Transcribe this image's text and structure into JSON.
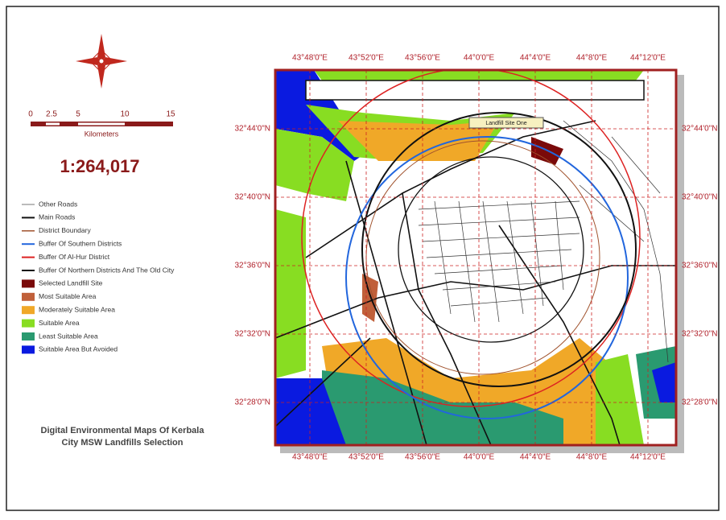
{
  "scale_bar": {
    "ticks": [
      "0",
      "2.5",
      "5",
      "10",
      "15"
    ],
    "unit": "Kilometers"
  },
  "scale_ratio": "1:264,017",
  "legend": [
    {
      "label": "Other Roads",
      "kind": "line",
      "color": "#777777",
      "width": 1
    },
    {
      "label": "Main Roads",
      "kind": "line",
      "color": "#111111",
      "width": 2
    },
    {
      "label": "District Boundary",
      "kind": "line",
      "color": "#a0522d",
      "width": 1.5
    },
    {
      "label": "Buffer Of Southern  Districts",
      "kind": "line",
      "color": "#2266dd",
      "width": 2
    },
    {
      "label": "Buffer Of Al-Hur District",
      "kind": "line",
      "color": "#dd2222",
      "width": 2
    },
    {
      "label": "Buffer Of Northern Districts And The Old City",
      "kind": "line",
      "color": "#111111",
      "width": 2
    },
    {
      "label": "Selected Landfill Site",
      "kind": "box",
      "color": "#7a0a0a"
    },
    {
      "label": "Most Suitable Area",
      "kind": "box",
      "color": "#c0603a"
    },
    {
      "label": "Moderately Suitable Area",
      "kind": "box",
      "color": "#f0a828"
    },
    {
      "label": "Suitable Area",
      "kind": "box",
      "color": "#88dd22"
    },
    {
      "label": "Least Suitable Area",
      "kind": "box",
      "color": "#2a9a70"
    },
    {
      "label": "Suitable Area But Avoided",
      "kind": "box",
      "color": "#0a1ae0"
    }
  ],
  "title": [
    "Digital Environmental Maps Of Kerbala",
    "City MSW  Landfills Selection"
  ],
  "map": {
    "longitudes": [
      "43°48'0\"E",
      "43°52'0\"E",
      "43°56'0\"E",
      "44°0'0\"E",
      "44°4'0\"E",
      "44°8'0\"E",
      "44°12'0\"E"
    ],
    "latitudes": [
      "32°44'0\"N",
      "32°40'0\"N",
      "32°36'0\"N",
      "32°32'0\"N",
      "32°28'0\"N"
    ],
    "site_label": "Landfill Site One"
  }
}
